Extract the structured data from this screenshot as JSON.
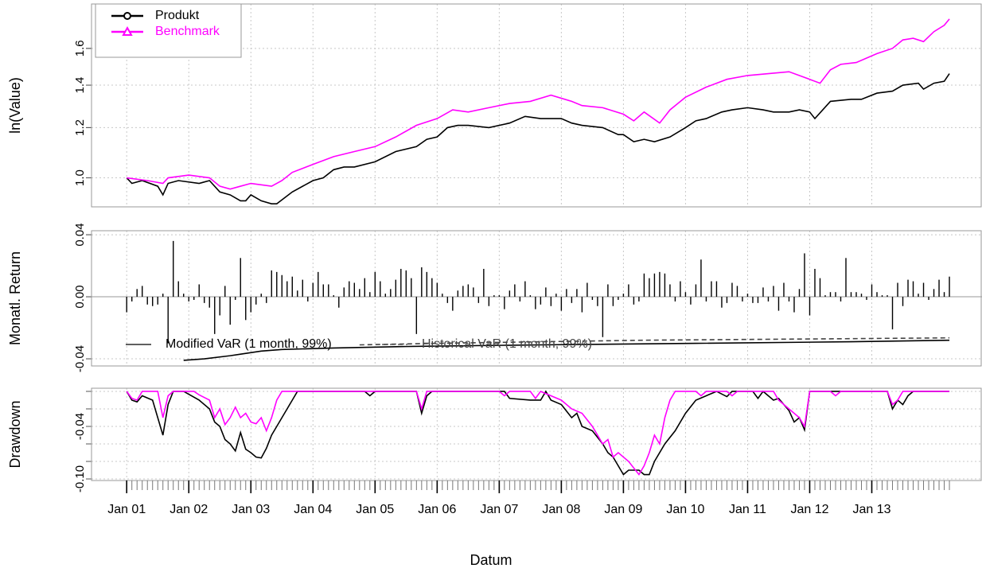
{
  "chart_data": [
    {
      "type": "line",
      "ylabel": "ln(Value)",
      "log_y": true,
      "grid": true,
      "legend": "topleft",
      "xlim": [
        -6.8,
        165.3
      ],
      "ylim": [
        0.9,
        1.88
      ],
      "yticks": [
        {
          "value": 1,
          "label": "1.0"
        },
        {
          "value": 1.2,
          "label": "1.2"
        },
        {
          "value": 1.4,
          "label": "1.4"
        },
        {
          "value": 1.6,
          "label": "1.6"
        }
      ],
      "series": [
        {
          "name": "Produkt",
          "color": "#000000",
          "marker": "circle",
          "x": [
            0,
            1,
            3,
            6,
            7,
            8,
            10,
            14,
            16,
            18,
            20,
            22,
            23,
            24,
            26,
            28,
            29,
            32,
            36,
            38,
            40,
            42,
            44,
            48,
            52,
            56,
            58,
            60,
            62,
            64,
            66,
            70,
            74,
            77,
            80,
            84,
            86,
            88,
            92,
            95,
            96,
            98,
            100,
            102,
            105,
            108,
            110,
            112,
            115,
            117,
            120,
            123,
            125,
            128,
            130,
            132,
            133,
            136,
            140,
            142,
            145,
            148,
            150,
            153,
            154,
            156,
            158,
            159
          ],
          "values": [
            1.0,
            0.98,
            0.99,
            0.97,
            0.94,
            0.98,
            0.99,
            0.98,
            0.99,
            0.95,
            0.94,
            0.92,
            0.92,
            0.94,
            0.92,
            0.91,
            0.91,
            0.95,
            0.99,
            1.0,
            1.03,
            1.04,
            1.04,
            1.06,
            1.1,
            1.12,
            1.15,
            1.16,
            1.2,
            1.21,
            1.21,
            1.2,
            1.22,
            1.25,
            1.24,
            1.24,
            1.22,
            1.21,
            1.2,
            1.17,
            1.17,
            1.14,
            1.15,
            1.14,
            1.16,
            1.2,
            1.23,
            1.24,
            1.27,
            1.28,
            1.29,
            1.28,
            1.27,
            1.27,
            1.28,
            1.27,
            1.24,
            1.32,
            1.33,
            1.33,
            1.36,
            1.37,
            1.4,
            1.41,
            1.38,
            1.41,
            1.42,
            1.46
          ]
        },
        {
          "name": "Benchmark",
          "color": "#ff00ff",
          "marker": "triangle",
          "x": [
            0,
            4,
            7,
            8,
            12,
            16,
            18,
            20,
            22,
            24,
            28,
            30,
            32,
            36,
            40,
            44,
            48,
            52,
            56,
            60,
            63,
            66,
            70,
            74,
            78,
            82,
            86,
            88,
            92,
            96,
            98,
            100,
            103,
            105,
            108,
            112,
            116,
            120,
            124,
            128,
            132,
            134,
            136,
            138,
            141,
            145,
            148,
            150,
            152,
            154,
            156,
            158,
            159
          ],
          "values": [
            1.0,
            0.99,
            0.98,
            1.0,
            1.01,
            1.0,
            0.97,
            0.96,
            0.97,
            0.98,
            0.97,
            0.99,
            1.02,
            1.05,
            1.08,
            1.1,
            1.12,
            1.16,
            1.21,
            1.24,
            1.28,
            1.27,
            1.29,
            1.31,
            1.32,
            1.35,
            1.32,
            1.3,
            1.29,
            1.26,
            1.23,
            1.27,
            1.22,
            1.28,
            1.34,
            1.39,
            1.43,
            1.45,
            1.46,
            1.47,
            1.43,
            1.41,
            1.48,
            1.51,
            1.52,
            1.57,
            1.6,
            1.65,
            1.66,
            1.64,
            1.7,
            1.74,
            1.78
          ]
        }
      ]
    },
    {
      "type": "bar",
      "ylabel": "Monatl. Return",
      "grid": true,
      "legend": "bottom",
      "color": "#000000",
      "xlim": [
        -6.8,
        165.3
      ],
      "ylim": [
        -0.0446,
        0.0426
      ],
      "yticks": [
        {
          "value": -0.04,
          "label": "-0.04"
        },
        {
          "value": 0,
          "label": "0.00"
        },
        {
          "value": 0.04,
          "label": "0.04"
        }
      ],
      "values": [
        -0.01,
        -0.003,
        0.005,
        0.007,
        -0.005,
        -0.006,
        -0.005,
        0.002,
        -0.03,
        0.036,
        0.01,
        0.002,
        -0.003,
        -0.002,
        0.008,
        -0.004,
        -0.007,
        -0.024,
        -0.012,
        0.007,
        -0.018,
        -0.002,
        0.025,
        -0.015,
        -0.01,
        -0.005,
        0.002,
        -0.004,
        0.017,
        0.016,
        0.014,
        0.01,
        0.013,
        0.004,
        0.011,
        -0.003,
        0.009,
        0.016,
        0.008,
        0.008,
        0.001,
        -0.007,
        0.006,
        0.01,
        0.009,
        0.005,
        0.012,
        0.003,
        0.016,
        0.01,
        0.002,
        0.005,
        0.011,
        0.018,
        0.017,
        0.012,
        -0.024,
        0.019,
        0.016,
        0.012,
        0.009,
        0.002,
        -0.004,
        -0.009,
        0.004,
        0.007,
        0.008,
        0.006,
        -0.004,
        0.018,
        -0.006,
        0.001,
        0.001,
        -0.008,
        0.004,
        0.008,
        -0.003,
        0.01,
        0.001,
        -0.008,
        -0.005,
        0.006,
        -0.006,
        0.002,
        -0.009,
        0.005,
        -0.004,
        0.005,
        -0.01,
        0.009,
        -0.002,
        -0.006,
        -0.026,
        0.008,
        -0.006,
        -0.002,
        0.002,
        0.008,
        -0.005,
        -0.003,
        0.015,
        0.012,
        0.015,
        0.016,
        0.015,
        0.008,
        -0.003,
        0.01,
        0.003,
        -0.005,
        0.008,
        0.024,
        -0.003,
        0.01,
        0.01,
        -0.007,
        -0.004,
        0.009,
        0.007,
        -0.003,
        0.002,
        -0.004,
        -0.004,
        0.006,
        -0.003,
        0.007,
        -0.009,
        0.009,
        -0.003,
        -0.01,
        0.005,
        0.028,
        -0.012,
        0.018,
        0.012,
        0.001,
        0.003,
        0.003,
        -0.003,
        0.025,
        0.003,
        0.003,
        0.002,
        -0.002,
        0.008,
        0.003,
        0.001,
        0.001,
        -0.021,
        0.009,
        -0.006,
        0.011,
        0.01,
        0.002,
        0.009,
        -0.002,
        0.005,
        0.011,
        0.003,
        0.013
      ],
      "series": [
        {
          "name": "Modified VaR (1 month, 99%)",
          "color": "#000000",
          "line_style": "solid",
          "x": [
            11,
            15,
            20,
            22,
            26,
            30,
            40,
            55,
            80,
            110,
            140,
            159
          ],
          "values": [
            -0.041,
            -0.04,
            -0.038,
            -0.037,
            -0.035,
            -0.034,
            -0.033,
            -0.032,
            -0.031,
            -0.03,
            -0.029,
            -0.028
          ]
        },
        {
          "name": "Historical VaR (1 month, 99%)",
          "color": "#444444",
          "line_style": "dashed",
          "x": [
            45,
            60,
            80,
            100,
            120,
            140,
            159
          ],
          "values": [
            -0.031,
            -0.03,
            -0.029,
            -0.028,
            -0.0275,
            -0.027,
            -0.0265
          ]
        }
      ]
    },
    {
      "type": "line",
      "ylabel": "Drawdown",
      "xlabel": "Datum",
      "grid": true,
      "xlim": [
        -6.8,
        165.3
      ],
      "ylim": [
        -0.1018,
        0.0036
      ],
      "yticks": [
        {
          "value": -0.04,
          "label": "-0.04"
        },
        {
          "value": -0.1,
          "label": "-0.10"
        }
      ],
      "ygrid": [
        0,
        -0.02,
        -0.04,
        -0.06,
        -0.08,
        -0.1
      ],
      "xticks": [
        {
          "value": 0,
          "label": "Jan 01"
        },
        {
          "value": 12,
          "label": "Jan 02"
        },
        {
          "value": 24,
          "label": "Jan 03"
        },
        {
          "value": 36,
          "label": "Jan 04"
        },
        {
          "value": 48,
          "label": "Jan 05"
        },
        {
          "value": 60,
          "label": "Jan 06"
        },
        {
          "value": 72,
          "label": "Jan 07"
        },
        {
          "value": 84,
          "label": "Jan 08"
        },
        {
          "value": 96,
          "label": "Jan 09"
        },
        {
          "value": 108,
          "label": "Jan 10"
        },
        {
          "value": 120,
          "label": "Jan 11"
        },
        {
          "value": 132,
          "label": "Jan 12"
        },
        {
          "value": 144,
          "label": "Jan 13"
        }
      ],
      "series": [
        {
          "name": "Produkt",
          "color": "#000000",
          "x": [
            0,
            1,
            2,
            3,
            5,
            7,
            8,
            9,
            11,
            14,
            16,
            17,
            18,
            19,
            20,
            21,
            22,
            23,
            24,
            25,
            26,
            27,
            28,
            29,
            30,
            31,
            32,
            33,
            46,
            47,
            48,
            56,
            57,
            58,
            59,
            73,
            74,
            78,
            80,
            81,
            82,
            84,
            86,
            87,
            88,
            90,
            92,
            93,
            94,
            96,
            97,
            99,
            100,
            101,
            102,
            104,
            106,
            108,
            110,
            112,
            114,
            116,
            117,
            121,
            122,
            123,
            124,
            125,
            126,
            127,
            128,
            129,
            130,
            131,
            132,
            147,
            148,
            149,
            150,
            151,
            152,
            159
          ],
          "values": [
            0,
            -0.01,
            -0.012,
            -0.005,
            -0.01,
            -0.05,
            -0.015,
            0,
            0,
            -0.01,
            -0.02,
            -0.035,
            -0.04,
            -0.055,
            -0.06,
            -0.068,
            -0.047,
            -0.066,
            -0.07,
            -0.075,
            -0.076,
            -0.065,
            -0.05,
            -0.04,
            -0.03,
            -0.02,
            -0.01,
            0,
            0,
            -0.005,
            0,
            0,
            -0.025,
            -0.005,
            0,
            0,
            -0.008,
            -0.01,
            -0.01,
            0,
            -0.01,
            -0.015,
            -0.03,
            -0.025,
            -0.04,
            -0.045,
            -0.06,
            -0.07,
            -0.075,
            -0.095,
            -0.09,
            -0.09,
            -0.095,
            -0.095,
            -0.08,
            -0.06,
            -0.045,
            -0.025,
            -0.01,
            -0.005,
            0,
            -0.006,
            0,
            0,
            -0.008,
            0,
            -0.005,
            -0.01,
            -0.008,
            -0.015,
            -0.022,
            -0.035,
            -0.03,
            -0.044,
            0,
            0,
            -0.02,
            -0.01,
            -0.015,
            -0.005,
            0,
            0
          ]
        },
        {
          "name": "Benchmark",
          "color": "#ff00ff",
          "x": [
            0,
            1,
            2,
            3,
            6,
            7,
            8,
            9,
            13,
            14,
            16,
            17,
            18,
            19,
            20,
            21,
            22,
            23,
            24,
            25,
            26,
            27,
            28,
            29,
            30,
            56,
            57,
            58,
            72,
            73,
            74,
            78,
            79,
            80,
            82,
            84,
            86,
            88,
            90,
            92,
            93,
            94,
            95,
            97,
            99,
            100,
            101,
            102,
            103,
            104,
            105,
            106,
            110,
            111,
            112,
            116,
            117,
            118,
            125,
            126,
            128,
            130,
            131,
            132,
            136,
            137,
            138,
            147,
            148,
            149,
            150,
            159
          ],
          "values": [
            0,
            -0.008,
            -0.01,
            0,
            0,
            -0.03,
            -0.005,
            0,
            0,
            -0.004,
            -0.01,
            -0.03,
            -0.02,
            -0.038,
            -0.03,
            -0.018,
            -0.03,
            -0.025,
            -0.035,
            -0.037,
            -0.03,
            -0.045,
            -0.03,
            -0.01,
            0,
            0,
            -0.02,
            0,
            0,
            -0.005,
            0,
            0,
            -0.008,
            0,
            -0.005,
            -0.01,
            -0.02,
            -0.025,
            -0.04,
            -0.06,
            -0.055,
            -0.075,
            -0.07,
            -0.08,
            -0.095,
            -0.085,
            -0.07,
            -0.05,
            -0.06,
            -0.03,
            -0.01,
            0,
            0,
            -0.005,
            0,
            0,
            -0.005,
            0,
            0,
            -0.01,
            -0.02,
            -0.03,
            -0.04,
            0,
            0,
            -0.005,
            0,
            0,
            -0.015,
            -0.01,
            0,
            0
          ]
        }
      ]
    }
  ]
}
